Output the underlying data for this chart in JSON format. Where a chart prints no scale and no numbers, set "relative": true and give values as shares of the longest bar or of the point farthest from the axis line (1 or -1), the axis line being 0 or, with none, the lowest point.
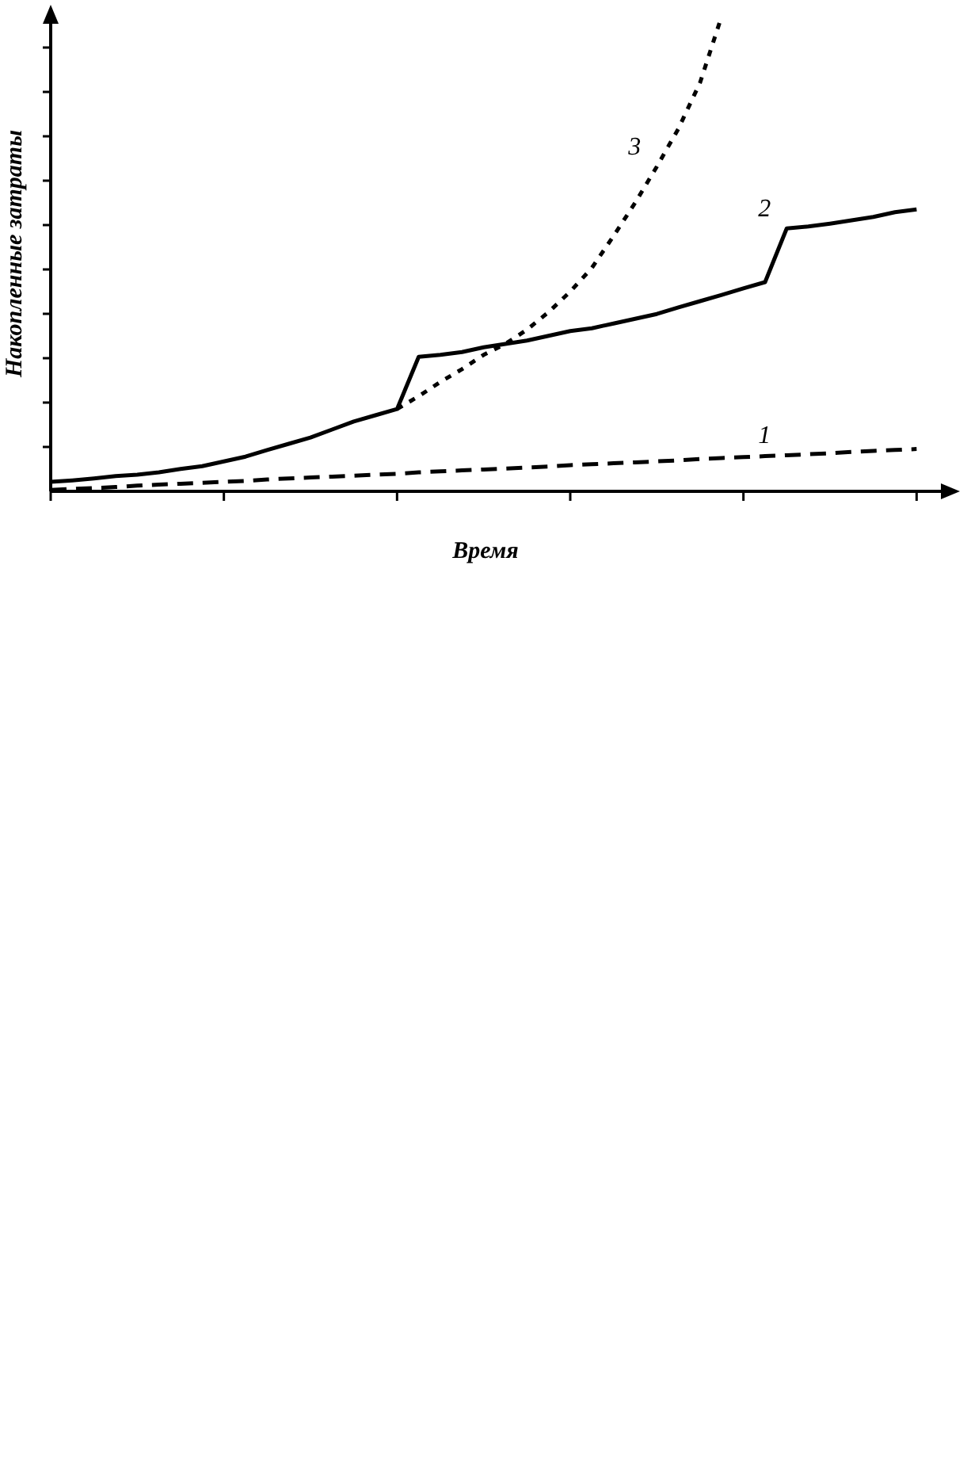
{
  "chart_data": {
    "type": "line",
    "relative": true,
    "xlabel": "Время",
    "ylabel": "Накопленные затраты",
    "legend": false,
    "marker": "none",
    "categories": [
      null,
      null,
      null,
      null,
      null,
      null,
      null,
      null,
      null,
      null,
      null,
      null,
      null,
      null,
      null,
      null,
      null,
      null,
      null,
      null,
      null,
      null,
      null,
      null,
      null,
      null,
      null,
      null,
      null,
      null,
      null,
      null,
      null,
      null,
      null,
      null,
      null,
      null,
      null,
      null,
      null,
      null,
      null
    ],
    "series": [
      {
        "name": "1",
        "color": "#000000",
        "line_style": "dashed",
        "values": [
          0.003,
          0.005,
          0.007,
          0.009,
          0.012,
          0.014,
          0.016,
          0.018,
          0.02,
          0.022,
          0.025,
          0.027,
          0.029,
          0.031,
          0.033,
          0.035,
          0.037,
          0.04,
          0.042,
          0.044,
          0.046,
          0.048,
          0.05,
          0.052,
          0.055,
          0.057,
          0.059,
          0.061,
          0.063,
          0.065,
          0.068,
          0.07,
          0.072,
          0.074,
          0.076,
          0.078,
          0.08,
          0.083,
          0.085,
          0.087,
          0.089,
          null,
          null
        ]
      },
      {
        "name": "2",
        "color": "#000000",
        "line_style": "solid",
        "values": [
          0.02,
          0.023,
          0.027,
          0.032,
          0.035,
          0.04,
          0.047,
          0.053,
          0.063,
          0.073,
          0.087,
          0.1,
          0.113,
          0.13,
          0.147,
          0.16,
          0.173,
          0.283,
          0.287,
          0.293,
          0.303,
          0.31,
          0.317,
          0.327,
          0.337,
          0.343,
          0.353,
          0.363,
          0.373,
          0.387,
          0.4,
          0.413,
          0.427,
          0.44,
          0.553,
          0.557,
          0.563,
          0.57,
          0.577,
          0.587,
          0.593,
          null,
          null
        ]
      },
      {
        "name": "3",
        "color": "#000000",
        "line_style": "dotted",
        "values": [
          null,
          null,
          null,
          null,
          null,
          null,
          null,
          null,
          null,
          null,
          null,
          null,
          null,
          null,
          null,
          null,
          0.173,
          0.2,
          0.23,
          0.257,
          0.287,
          0.31,
          0.34,
          0.377,
          0.42,
          0.47,
          0.537,
          0.607,
          0.683,
          0.763,
          0.86,
          1,
          null,
          null,
          null,
          null,
          null,
          null,
          null,
          null,
          null,
          null,
          null
        ]
      }
    ]
  }
}
